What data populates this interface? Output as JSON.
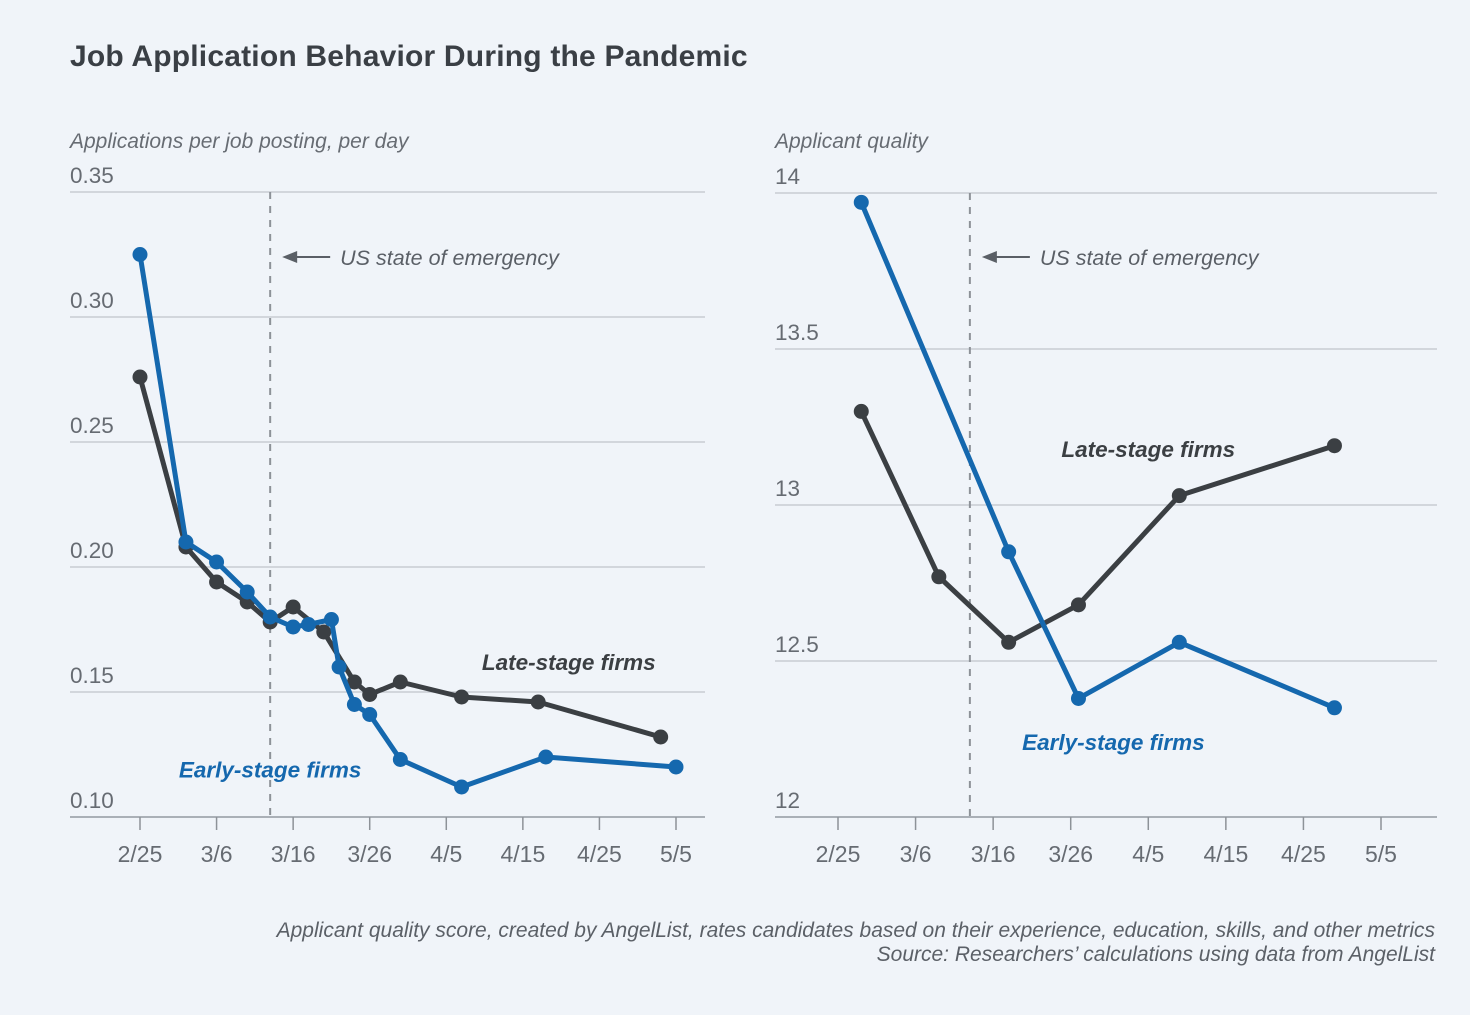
{
  "page": {
    "title": "Job Application Behavior During the Pandemic"
  },
  "caption": {
    "line1": "Applicant quality score, created by AngelList, rates candidates based on their experience, education, skills, and other metrics",
    "line2": "Source: Researchers’ calculations using data from AngelList"
  },
  "colors": {
    "early_stage": "#1568ae",
    "late_stage": "#3b3f43",
    "gridline": "#c7ccd3",
    "axis_line": "#9aa0a7",
    "tick_mark": "#8d9298",
    "axis_text": "#666b72",
    "annotation_text": "#5a5f66",
    "dashed_line": "#8d9298",
    "title_text": "#3a3f45"
  },
  "chart_data": [
    {
      "type": "line",
      "title": "Applications per job posting, per day",
      "ylim": [
        0.1,
        0.35
      ],
      "x_day_range": [
        0,
        70
      ],
      "grid": true,
      "y_ticks": [
        {
          "label": "0.35",
          "value": 0.35
        },
        {
          "label": "0.30",
          "value": 0.3
        },
        {
          "label": "0.25",
          "value": 0.25
        },
        {
          "label": "0.20",
          "value": 0.2
        },
        {
          "label": "0.15",
          "value": 0.15
        },
        {
          "label": "0.10",
          "value": 0.1
        }
      ],
      "x_ticks": [
        {
          "label": "2/25",
          "day": 0
        },
        {
          "label": "3/6",
          "day": 10
        },
        {
          "label": "3/16",
          "day": 20
        },
        {
          "label": "3/26",
          "day": 30
        },
        {
          "label": "4/5",
          "day": 40
        },
        {
          "label": "4/15",
          "day": 50
        },
        {
          "label": "4/25",
          "day": 60
        },
        {
          "label": "5/5",
          "day": 70
        }
      ],
      "annotation": {
        "text": "US state of emergency",
        "day": 17,
        "event_date": "3/13"
      },
      "series": [
        {
          "name": "Late-stage firms",
          "color_key": "late_stage",
          "label_anchor": {
            "day": 56,
            "value": 0.162
          },
          "points": [
            {
              "date": "2/25",
              "day": 0,
              "value": 0.276
            },
            {
              "date": "3/2",
              "day": 6,
              "value": 0.208
            },
            {
              "date": "3/6",
              "day": 10,
              "value": 0.194
            },
            {
              "date": "3/10",
              "day": 14,
              "value": 0.186
            },
            {
              "date": "3/13",
              "day": 17,
              "value": 0.178
            },
            {
              "date": "3/16",
              "day": 20,
              "value": 0.184
            },
            {
              "date": "3/20",
              "day": 24,
              "value": 0.174
            },
            {
              "date": "3/24",
              "day": 28,
              "value": 0.154
            },
            {
              "date": "3/26",
              "day": 30,
              "value": 0.149
            },
            {
              "date": "3/30",
              "day": 34,
              "value": 0.154
            },
            {
              "date": "4/7",
              "day": 42,
              "value": 0.148
            },
            {
              "date": "4/16",
              "day": 52,
              "value": 0.146
            },
            {
              "date": "5/3",
              "day": 68,
              "value": 0.132
            }
          ]
        },
        {
          "name": "Early-stage firms",
          "color_key": "early_stage",
          "label_anchor": {
            "day": 17,
            "value": 0.119
          },
          "points": [
            {
              "date": "2/25",
              "day": 0,
              "value": 0.325
            },
            {
              "date": "3/2",
              "day": 6,
              "value": 0.21
            },
            {
              "date": "3/6",
              "day": 10,
              "value": 0.202
            },
            {
              "date": "3/10",
              "day": 14,
              "value": 0.19
            },
            {
              "date": "3/13",
              "day": 17,
              "value": 0.18
            },
            {
              "date": "3/16",
              "day": 20,
              "value": 0.176
            },
            {
              "date": "3/18",
              "day": 22,
              "value": 0.177
            },
            {
              "date": "3/21",
              "day": 25,
              "value": 0.179
            },
            {
              "date": "3/22",
              "day": 26,
              "value": 0.16
            },
            {
              "date": "3/24",
              "day": 28,
              "value": 0.145
            },
            {
              "date": "3/26",
              "day": 30,
              "value": 0.141
            },
            {
              "date": "3/30",
              "day": 34,
              "value": 0.123
            },
            {
              "date": "4/7",
              "day": 42,
              "value": 0.112
            },
            {
              "date": "4/18",
              "day": 53,
              "value": 0.124
            },
            {
              "date": "5/5",
              "day": 70,
              "value": 0.12
            }
          ]
        }
      ]
    },
    {
      "type": "line",
      "title": "Applicant quality",
      "ylim": [
        12,
        14
      ],
      "x_day_range": [
        0,
        70
      ],
      "grid": true,
      "y_ticks": [
        {
          "label": "14",
          "value": 14
        },
        {
          "label": "13.5",
          "value": 13.5
        },
        {
          "label": "13",
          "value": 13
        },
        {
          "label": "12.5",
          "value": 12.5
        },
        {
          "label": "12",
          "value": 12
        }
      ],
      "x_ticks": [
        {
          "label": "2/25",
          "day": 0
        },
        {
          "label": "3/6",
          "day": 10
        },
        {
          "label": "3/16",
          "day": 20
        },
        {
          "label": "3/26",
          "day": 30
        },
        {
          "label": "4/5",
          "day": 40
        },
        {
          "label": "4/15",
          "day": 50
        },
        {
          "label": "4/25",
          "day": 60
        },
        {
          "label": "5/5",
          "day": 70
        }
      ],
      "annotation": {
        "text": "US state of emergency",
        "day": 17,
        "event_date": "3/13"
      },
      "series": [
        {
          "name": "Late-stage firms",
          "color_key": "late_stage",
          "label_anchor": {
            "day": 40,
            "value": 13.18
          },
          "points": [
            {
              "date": "2/28",
              "day": 3,
              "value": 13.3
            },
            {
              "date": "3/9",
              "day": 13,
              "value": 12.77
            },
            {
              "date": "3/18",
              "day": 22,
              "value": 12.56
            },
            {
              "date": "3/27",
              "day": 31,
              "value": 12.68
            },
            {
              "date": "4/9",
              "day": 44,
              "value": 13.03
            },
            {
              "date": "4/29",
              "day": 64,
              "value": 13.19
            }
          ]
        },
        {
          "name": "Early-stage firms",
          "color_key": "early_stage",
          "label_anchor": {
            "day": 35.5,
            "value": 12.24
          },
          "points": [
            {
              "date": "2/28",
              "day": 3,
              "value": 13.97
            },
            {
              "date": "3/18",
              "day": 22,
              "value": 12.85
            },
            {
              "date": "3/27",
              "day": 31,
              "value": 12.38
            },
            {
              "date": "4/9",
              "day": 44,
              "value": 12.56
            },
            {
              "date": "4/29",
              "day": 64,
              "value": 12.35
            }
          ]
        }
      ]
    }
  ]
}
